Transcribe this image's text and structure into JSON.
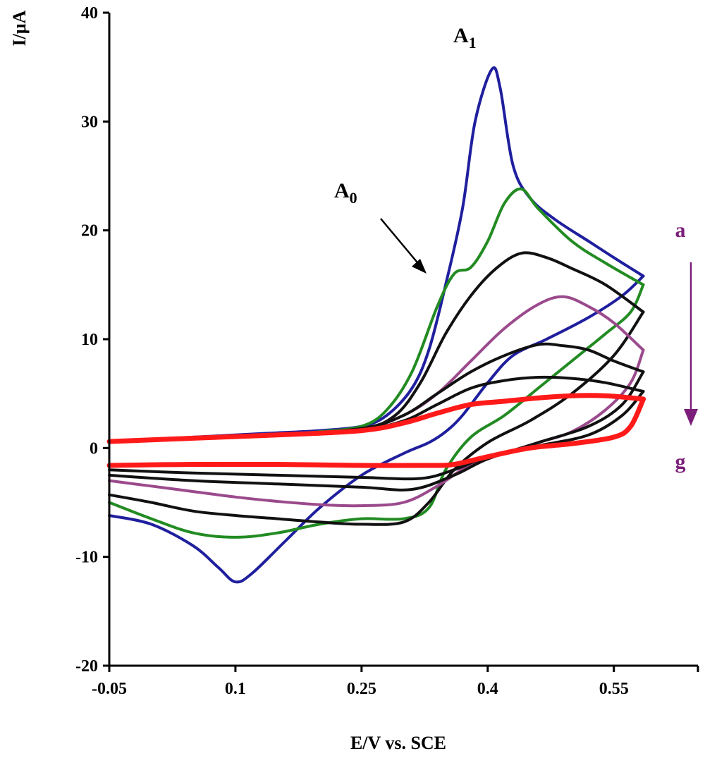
{
  "chart_data": {
    "type": "line",
    "title": "",
    "xlabel": "E/V vs. SCE",
    "ylabel": "I/μA",
    "xlim": [
      -0.05,
      0.65
    ],
    "ylim": [
      -20,
      40
    ],
    "x_tick_labels": [
      "-0.05",
      "0.1",
      "0.25",
      "0.4",
      "0.55"
    ],
    "x_ticks": [
      -0.05,
      0.1,
      0.25,
      0.4,
      0.55
    ],
    "y_ticks": [
      -20,
      -10,
      0,
      10,
      20,
      30,
      40
    ],
    "y_tick_labels": [
      "-20",
      "-10",
      "0",
      "10",
      "20",
      "30",
      "40"
    ],
    "grid": false,
    "legend": "none",
    "annotations": {
      "A1": {
        "main": "A",
        "sub": "1",
        "x": 0.415,
        "y": 36.5
      },
      "A0": {
        "main": "A",
        "sub": "0",
        "x": 0.32,
        "y": 23.5,
        "arrow_from": [
          0.33,
          21
        ],
        "arrow_to": [
          0.37,
          16
        ]
      },
      "series_arrow": {
        "top_label": "a",
        "bottom_label": "g",
        "color": "#7b1f7b",
        "x": 0.627,
        "y_from": 17,
        "y_to": 2
      }
    },
    "series": [
      {
        "color": "#1f1f9e",
        "forward": [
          [
            -0.05,
            -6.2
          ],
          [
            0.0,
            -7
          ],
          [
            0.05,
            -9
          ],
          [
            0.08,
            -11
          ],
          [
            0.1,
            -12.3
          ],
          [
            0.12,
            -11.5
          ],
          [
            0.16,
            -8.5
          ],
          [
            0.2,
            -5.5
          ],
          [
            0.25,
            -2.5
          ],
          [
            0.3,
            -0.5
          ],
          [
            0.33,
            0.5
          ],
          [
            0.35,
            1.5
          ],
          [
            0.37,
            3
          ],
          [
            0.4,
            6
          ],
          [
            0.43,
            8.5
          ],
          [
            0.47,
            10
          ],
          [
            0.52,
            12
          ],
          [
            0.56,
            14
          ],
          [
            0.585,
            15.8
          ]
        ],
        "reverse": [
          [
            -0.05,
            0.6
          ],
          [
            0.0,
            0.8
          ],
          [
            0.05,
            1
          ],
          [
            0.1,
            1.2
          ],
          [
            0.15,
            1.4
          ],
          [
            0.2,
            1.6
          ],
          [
            0.25,
            2
          ],
          [
            0.28,
            3
          ],
          [
            0.31,
            5.5
          ],
          [
            0.33,
            9
          ],
          [
            0.35,
            15
          ],
          [
            0.37,
            22
          ],
          [
            0.385,
            30
          ],
          [
            0.405,
            34.8
          ],
          [
            0.415,
            33
          ],
          [
            0.43,
            26
          ],
          [
            0.45,
            23
          ],
          [
            0.48,
            21
          ],
          [
            0.52,
            19
          ],
          [
            0.55,
            17.5
          ],
          [
            0.585,
            15.8
          ]
        ]
      },
      {
        "color": "#228b22",
        "forward": [
          [
            -0.05,
            -5
          ],
          [
            0.0,
            -6.5
          ],
          [
            0.05,
            -7.8
          ],
          [
            0.1,
            -8.2
          ],
          [
            0.15,
            -7.8
          ],
          [
            0.2,
            -7
          ],
          [
            0.25,
            -6.5
          ],
          [
            0.3,
            -6.5
          ],
          [
            0.33,
            -5.5
          ],
          [
            0.35,
            -2
          ],
          [
            0.38,
            1
          ],
          [
            0.42,
            3
          ],
          [
            0.46,
            5.5
          ],
          [
            0.5,
            8
          ],
          [
            0.54,
            10.5
          ],
          [
            0.57,
            12.5
          ],
          [
            0.585,
            15
          ]
        ],
        "reverse": [
          [
            -0.05,
            0.6
          ],
          [
            0.05,
            0.9
          ],
          [
            0.15,
            1.2
          ],
          [
            0.2,
            1.5
          ],
          [
            0.25,
            2
          ],
          [
            0.28,
            3.5
          ],
          [
            0.31,
            7
          ],
          [
            0.34,
            13
          ],
          [
            0.36,
            16
          ],
          [
            0.38,
            16.6
          ],
          [
            0.4,
            19
          ],
          [
            0.42,
            22.5
          ],
          [
            0.44,
            23.8
          ],
          [
            0.46,
            22
          ],
          [
            0.5,
            19
          ],
          [
            0.54,
            17
          ],
          [
            0.585,
            15
          ]
        ]
      },
      {
        "color": "#111111",
        "forward": [
          [
            -0.05,
            -4.3
          ],
          [
            0.0,
            -5
          ],
          [
            0.05,
            -5.8
          ],
          [
            0.1,
            -6.2
          ],
          [
            0.15,
            -6.5
          ],
          [
            0.2,
            -6.8
          ],
          [
            0.25,
            -7
          ],
          [
            0.3,
            -6.8
          ],
          [
            0.33,
            -5
          ],
          [
            0.36,
            -2
          ],
          [
            0.4,
            0.5
          ],
          [
            0.45,
            2.5
          ],
          [
            0.5,
            5
          ],
          [
            0.55,
            8.5
          ],
          [
            0.585,
            12.5
          ]
        ],
        "reverse": [
          [
            -0.05,
            0.6
          ],
          [
            0.05,
            0.9
          ],
          [
            0.15,
            1.2
          ],
          [
            0.25,
            1.8
          ],
          [
            0.29,
            3
          ],
          [
            0.32,
            6
          ],
          [
            0.35,
            10.5
          ],
          [
            0.38,
            14
          ],
          [
            0.41,
            16.5
          ],
          [
            0.44,
            17.9
          ],
          [
            0.47,
            17.5
          ],
          [
            0.5,
            16.5
          ],
          [
            0.54,
            15
          ],
          [
            0.585,
            12.5
          ]
        ]
      },
      {
        "color": "#9b4a8c",
        "forward": [
          [
            -0.05,
            -3
          ],
          [
            0.0,
            -3.5
          ],
          [
            0.05,
            -4
          ],
          [
            0.1,
            -4.5
          ],
          [
            0.15,
            -4.9
          ],
          [
            0.2,
            -5.2
          ],
          [
            0.25,
            -5.3
          ],
          [
            0.3,
            -5
          ],
          [
            0.34,
            -3.5
          ],
          [
            0.38,
            -1.5
          ],
          [
            0.42,
            -0.5
          ],
          [
            0.46,
            0.5
          ],
          [
            0.5,
            1.5
          ],
          [
            0.54,
            3.5
          ],
          [
            0.57,
            6
          ],
          [
            0.585,
            9
          ]
        ],
        "reverse": [
          [
            -0.05,
            0.6
          ],
          [
            0.05,
            0.9
          ],
          [
            0.15,
            1.2
          ],
          [
            0.25,
            1.8
          ],
          [
            0.3,
            3
          ],
          [
            0.34,
            5
          ],
          [
            0.38,
            8
          ],
          [
            0.42,
            11
          ],
          [
            0.46,
            13.2
          ],
          [
            0.49,
            13.9
          ],
          [
            0.52,
            13
          ],
          [
            0.55,
            11.5
          ],
          [
            0.585,
            9
          ]
        ]
      },
      {
        "color": "#111111",
        "forward": [
          [
            -0.05,
            -2.5
          ],
          [
            0.05,
            -3
          ],
          [
            0.15,
            -3.3
          ],
          [
            0.25,
            -3.6
          ],
          [
            0.31,
            -3.8
          ],
          [
            0.36,
            -2.5
          ],
          [
            0.4,
            -1
          ],
          [
            0.46,
            0.5
          ],
          [
            0.52,
            2
          ],
          [
            0.56,
            4
          ],
          [
            0.585,
            7
          ]
        ],
        "reverse": [
          [
            -0.05,
            0.6
          ],
          [
            0.05,
            0.9
          ],
          [
            0.15,
            1.2
          ],
          [
            0.25,
            1.8
          ],
          [
            0.3,
            3
          ],
          [
            0.34,
            5
          ],
          [
            0.38,
            7
          ],
          [
            0.42,
            8.5
          ],
          [
            0.46,
            9.5
          ],
          [
            0.49,
            9.4
          ],
          [
            0.52,
            9
          ],
          [
            0.55,
            8
          ],
          [
            0.585,
            7
          ]
        ]
      },
      {
        "color": "#111111",
        "forward": [
          [
            -0.05,
            -2
          ],
          [
            0.05,
            -2.3
          ],
          [
            0.15,
            -2.5
          ],
          [
            0.25,
            -2.7
          ],
          [
            0.32,
            -2.8
          ],
          [
            0.36,
            -2
          ],
          [
            0.4,
            -0.8
          ],
          [
            0.46,
            0.2
          ],
          [
            0.52,
            1.2
          ],
          [
            0.56,
            3
          ],
          [
            0.585,
            5.2
          ]
        ],
        "reverse": [
          [
            -0.05,
            0.6
          ],
          [
            0.05,
            0.9
          ],
          [
            0.15,
            1.2
          ],
          [
            0.25,
            1.7
          ],
          [
            0.3,
            2.5
          ],
          [
            0.34,
            4
          ],
          [
            0.38,
            5.5
          ],
          [
            0.42,
            6.2
          ],
          [
            0.46,
            6.5
          ],
          [
            0.5,
            6.4
          ],
          [
            0.54,
            6
          ],
          [
            0.585,
            5.2
          ]
        ]
      },
      {
        "color": "#ff1a1a",
        "forward": [
          [
            -0.05,
            -1.6
          ],
          [
            0.05,
            -1.5
          ],
          [
            0.15,
            -1.5
          ],
          [
            0.25,
            -1.6
          ],
          [
            0.33,
            -1.6
          ],
          [
            0.36,
            -1.5
          ],
          [
            0.4,
            -0.8
          ],
          [
            0.45,
            0
          ],
          [
            0.5,
            0.4
          ],
          [
            0.55,
            1
          ],
          [
            0.57,
            2
          ],
          [
            0.585,
            4.5
          ]
        ],
        "reverse": [
          [
            -0.05,
            0.6
          ],
          [
            0.05,
            0.9
          ],
          [
            0.15,
            1.2
          ],
          [
            0.25,
            1.6
          ],
          [
            0.3,
            2.3
          ],
          [
            0.34,
            3.2
          ],
          [
            0.38,
            4
          ],
          [
            0.42,
            4.3
          ],
          [
            0.46,
            4.6
          ],
          [
            0.5,
            4.8
          ],
          [
            0.54,
            4.8
          ],
          [
            0.585,
            4.5
          ]
        ]
      }
    ]
  }
}
